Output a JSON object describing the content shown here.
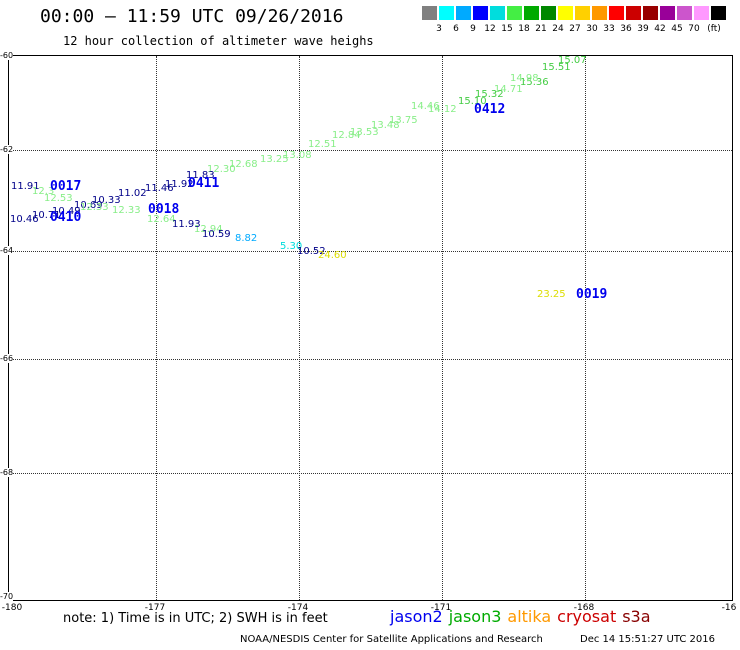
{
  "header": {
    "title": "00:00 – 11:59 UTC 09/26/2016",
    "subtitle": "12 hour collection of altimeter wave heighs"
  },
  "legend": {
    "unit": "(ft)",
    "colors": [
      "#808080",
      "#00ffff",
      "#00aaff",
      "#0000ff",
      "#00dddd",
      "#44ee44",
      "#00aa00",
      "#008800",
      "#ffff00",
      "#ffd000",
      "#ff9900",
      "#ff0000",
      "#cc0000",
      "#990000",
      "#990099",
      "#cc55cc",
      "#ff99ff",
      "#000000"
    ],
    "ticks": [
      "3",
      "6",
      "9",
      "12",
      "15",
      "18",
      "21",
      "24",
      "27",
      "30",
      "33",
      "36",
      "39",
      "42",
      "45",
      "70"
    ]
  },
  "map": {
    "lat_labels": [
      "-60",
      "-62",
      "-64",
      "-66",
      "-68",
      "-70"
    ],
    "lon_labels": [
      "-180",
      "-177",
      "-174",
      "-171",
      "-168",
      "-16"
    ]
  },
  "observations": [
    {
      "text": "15.07",
      "color": "#44cc44",
      "sat": "jason3"
    },
    {
      "text": "15.51",
      "color": "#44cc44",
      "sat": "jason3"
    },
    {
      "text": "15.36",
      "color": "#44cc44",
      "sat": "jason3"
    },
    {
      "text": "14.98",
      "color": "#88ee88",
      "sat": "jason3"
    },
    {
      "text": "14.71",
      "color": "#88ee88",
      "sat": "jason3"
    },
    {
      "text": "15.32",
      "color": "#44cc44",
      "sat": "jason3"
    },
    {
      "text": "15.10",
      "color": "#44cc44",
      "sat": "jason3"
    },
    {
      "text": "14.12",
      "color": "#88ee88",
      "sat": "jason3"
    },
    {
      "text": "14.46",
      "color": "#88ee88",
      "sat": "jason3"
    },
    {
      "text": "13.75",
      "color": "#88ee88",
      "sat": "jason3"
    },
    {
      "text": "13.48",
      "color": "#88ee88",
      "sat": "jason3"
    },
    {
      "text": "13.53",
      "color": "#88ee88",
      "sat": "jason3"
    },
    {
      "text": "12.84",
      "color": "#88ee88",
      "sat": "jason3"
    },
    {
      "text": "12.51",
      "color": "#88ee88",
      "sat": "jason3"
    },
    {
      "text": "13.08",
      "color": "#88ee88",
      "sat": "jason3"
    },
    {
      "text": "13.25",
      "color": "#88ee88",
      "sat": "jason3"
    },
    {
      "text": "12.68",
      "color": "#88ee88",
      "sat": "jason3"
    },
    {
      "text": "12.30",
      "color": "#88ee88",
      "sat": "jason3"
    },
    {
      "text": "11.83",
      "color": "#000088",
      "sat": "jason2"
    },
    {
      "text": "11.92",
      "color": "#000088",
      "sat": "jason2"
    },
    {
      "text": "11.46",
      "color": "#000088",
      "sat": "jason2"
    },
    {
      "text": "11.02",
      "color": "#000088",
      "sat": "jason2"
    },
    {
      "text": "10.33",
      "color": "#000088",
      "sat": "jason2"
    },
    {
      "text": "10.69",
      "color": "#000088",
      "sat": "jason2"
    },
    {
      "text": "10.49",
      "color": "#000088",
      "sat": "jason2"
    },
    {
      "text": "10.71",
      "color": "#000088",
      "sat": "jason2"
    },
    {
      "text": "10.46",
      "color": "#000088",
      "sat": "jason2"
    },
    {
      "text": "11.91",
      "color": "#000088",
      "sat": "jason2"
    },
    {
      "text": "12.3",
      "color": "#88ee88",
      "sat": "jason3"
    },
    {
      "text": "12.33",
      "color": "#88ee88",
      "sat": "jason3"
    },
    {
      "text": "12.53",
      "color": "#88ee88",
      "sat": "jason3"
    },
    {
      "text": "12.33",
      "color": "#88ee88",
      "sat": "jason3"
    },
    {
      "text": "12.64",
      "color": "#88ee88",
      "sat": "jason3"
    },
    {
      "text": "12.94",
      "color": "#88ee88",
      "sat": "jason3"
    },
    {
      "text": "11.93",
      "color": "#000088",
      "sat": "jason2"
    },
    {
      "text": "10.59",
      "color": "#000088",
      "sat": "jason2"
    },
    {
      "text": "8.82",
      "color": "#00aaff",
      "sat": "jason2"
    },
    {
      "text": "5.30",
      "color": "#00dddd",
      "sat": "jason2"
    },
    {
      "text": "10.52",
      "color": "#000088",
      "sat": "jason2"
    },
    {
      "text": "24.60",
      "color": "#dddd00",
      "sat": "altika"
    },
    {
      "text": "23.25",
      "color": "#dddd00",
      "sat": "altika"
    }
  ],
  "time_labels": [
    "0412",
    "0411",
    "0017",
    "0018",
    "0410",
    "0019"
  ],
  "footer": {
    "note": "note: 1) Time is in UTC; 2) SWH is in feet",
    "satellites": [
      {
        "name": "jason2",
        "color": "#0000ee"
      },
      {
        "name": "jason3",
        "color": "#00aa00"
      },
      {
        "name": "altika",
        "color": "#ff9900"
      },
      {
        "name": "cryosat",
        "color": "#cc0000"
      },
      {
        "name": "s3a",
        "color": "#880000"
      }
    ],
    "credit": "NOAA/NESDIS Center for Satellite Applications and Research",
    "timestamp": "Dec 14 15:51:27 UTC 2016"
  }
}
